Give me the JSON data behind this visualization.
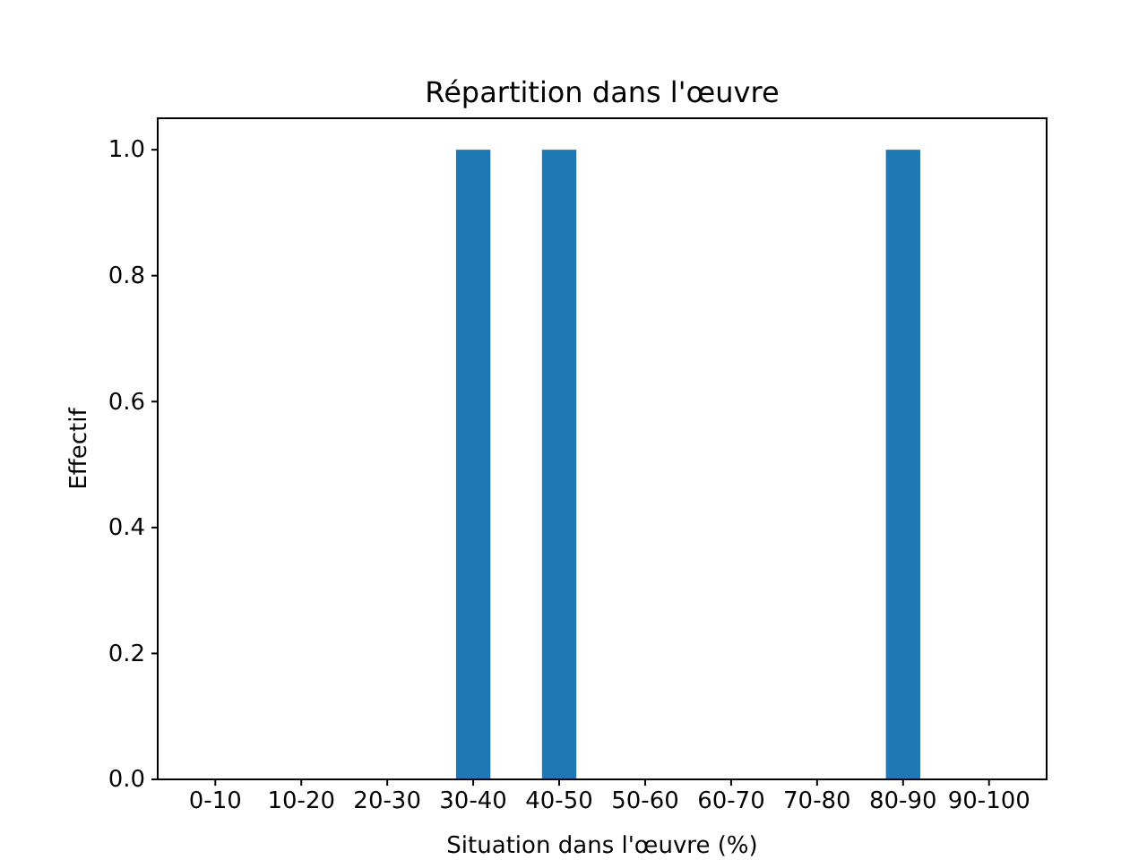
{
  "chart_data": {
    "type": "bar",
    "title": "Répartition dans l'œuvre",
    "xlabel": "Situation dans l'œuvre (%)",
    "ylabel": "Effectif",
    "categories": [
      "0-10",
      "10-20",
      "20-30",
      "30-40",
      "40-50",
      "50-60",
      "60-70",
      "70-80",
      "80-90",
      "90-100"
    ],
    "values": [
      0,
      0,
      0,
      1,
      1,
      0,
      0,
      0,
      1,
      0
    ],
    "color": "#1f77b4",
    "ylim": [
      0,
      1.05
    ],
    "yticks": [
      {
        "value": 0,
        "label": "0.0"
      },
      {
        "value": 0.2,
        "label": "0.2"
      },
      {
        "value": 0.4,
        "label": "0.4"
      },
      {
        "value": 0.6,
        "label": "0.6"
      },
      {
        "value": 0.8,
        "label": "0.8"
      },
      {
        "value": 1,
        "label": "1.0"
      }
    ],
    "grid": false
  }
}
